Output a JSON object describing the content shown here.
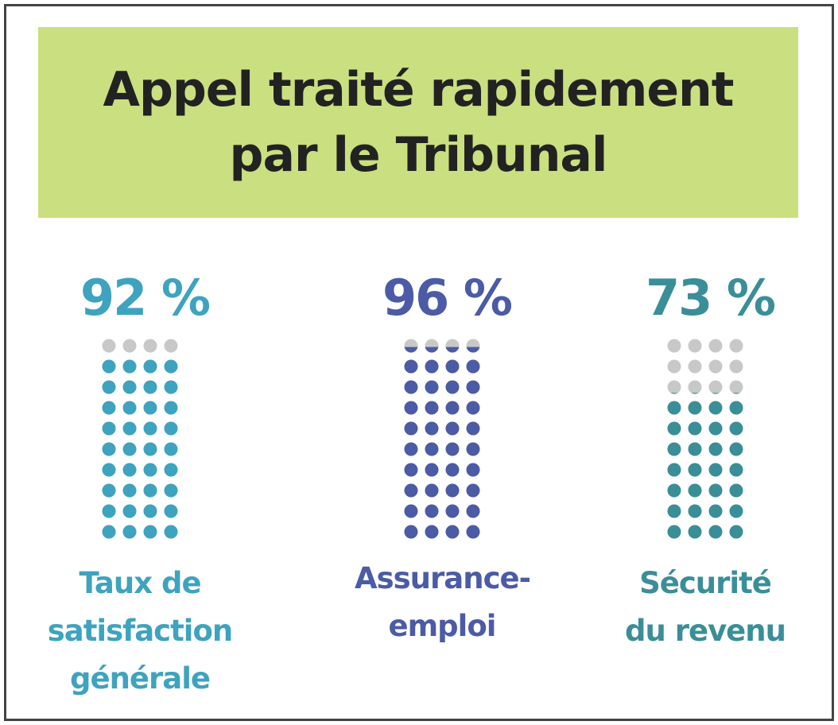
{
  "chart_data": {
    "type": "dot-column",
    "title": "Appel traité rapidement par le Tribunal",
    "title_background": "#cadf7f",
    "categories": [
      "Taux de satisfaction générale",
      "Assurance-emploi",
      "Sécurité du revenu"
    ],
    "values": [
      92,
      96,
      73
    ],
    "value_labels": [
      "92 %",
      "96 %",
      "73 %"
    ],
    "colors": [
      "#3ea3bf",
      "#4b5ba6",
      "#3a8e98"
    ],
    "empty_color": "#c8c8c8"
  }
}
